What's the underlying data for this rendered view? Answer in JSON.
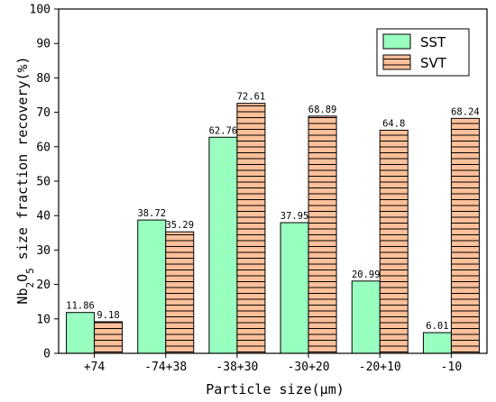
{
  "chart_data": {
    "type": "bar",
    "categories": [
      "+74",
      "-74+38",
      "-38+30",
      "-30+20",
      "-20+10",
      "-10"
    ],
    "series": [
      {
        "name": "SST",
        "values": [
          11.86,
          38.72,
          62.76,
          37.95,
          20.99,
          6.01
        ],
        "color": "#99ffc0",
        "pattern": "solid"
      },
      {
        "name": "SVT",
        "values": [
          9.18,
          35.29,
          72.61,
          68.89,
          64.8,
          68.24
        ],
        "color": "#ffc09a",
        "pattern": "horizontal-lines"
      }
    ],
    "data_labels": {
      "SST": [
        "11.86",
        "38.72",
        "62.76",
        "37.95",
        "20.99",
        "6.01"
      ],
      "SVT": [
        "9.18",
        "35.29",
        "72.61",
        "68.89",
        "64.8",
        "68.24"
      ]
    },
    "title": "",
    "xlabel": "Particle size(μm)",
    "ylabel": "Nb2O5 size fraction recovery(%)",
    "ylabel_parts": {
      "pre": "Nb",
      "sub1": "2",
      "mid": "O",
      "sub2": "5",
      "post": " size fraction recovery(%)"
    },
    "ylim": [
      0,
      100
    ],
    "yticks": [
      "0",
      "10",
      "20",
      "30",
      "40",
      "50",
      "60",
      "70",
      "80",
      "90",
      "100"
    ],
    "grid": false,
    "legend_position": "top-right"
  }
}
